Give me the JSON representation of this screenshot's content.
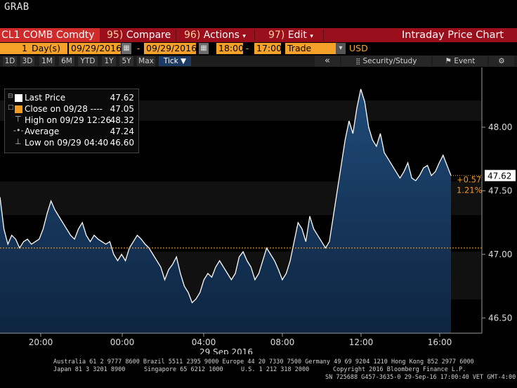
{
  "window": {
    "title": "GRAB"
  },
  "toolbar1": {
    "ticker": "CL1 COMB Comdty",
    "compare_num": "95)",
    "compare_label": "Compare",
    "actions_num": "96)",
    "actions_label": "Actions",
    "edit_num": "97)",
    "edit_label": "Edit",
    "chart_title": "Intraday Price Chart"
  },
  "toolbar2": {
    "period_count": "1",
    "period_unit": "Day(s)",
    "start_date": "09/29/2016",
    "end_date": "09/29/2016",
    "start_time": "18:00",
    "end_time": "17:00",
    "event_type": "Trade",
    "currency": "USD"
  },
  "timeframes": [
    "1D",
    "3D",
    "1M",
    "6M",
    "YTD",
    "1Y",
    "5Y",
    "Max"
  ],
  "tick_label": "Tick ▼",
  "right_controls": {
    "collapse": "«",
    "security_study": "Security/Study",
    "event": "Event"
  },
  "legend": {
    "rows": [
      {
        "label": "Last Price",
        "value": "47.62"
      },
      {
        "label": "Close on 09/28 ----",
        "value": "47.05"
      },
      {
        "label": "High on 09/29 12:26",
        "value": "48.32"
      },
      {
        "label": "Average",
        "value": "47.24"
      },
      {
        "label": "Low on 09/29 04:40",
        "value": "46.60"
      }
    ]
  },
  "price_tag": {
    "last": "47.62",
    "change": "+0.57",
    "change_pct": "1.21%"
  },
  "colors": {
    "accent_red": "#9a0f1b",
    "orange": "#f6a22a",
    "close_line": "#f39a1e",
    "area": "#163456"
  },
  "chart_data": {
    "type": "area",
    "x_ticks": [
      "20:00",
      "00:00",
      "04:00",
      "08:00",
      "12:00",
      "16:00"
    ],
    "x_date_label": "29 Sep 2016",
    "y_ticks": [
      48.0,
      47.5,
      47.0,
      46.5
    ],
    "ylim": [
      46.38,
      48.47
    ],
    "close_reference": 47.05,
    "series": [
      {
        "values": [
          47.45,
          47.2,
          47.08,
          47.15,
          47.12,
          47.05,
          47.1,
          47.12,
          47.08,
          47.1,
          47.12,
          47.2,
          47.32,
          47.42,
          47.35,
          47.3,
          47.25,
          47.2,
          47.15,
          47.12,
          47.2,
          47.25,
          47.15,
          47.1,
          47.15,
          47.12,
          47.1,
          47.08,
          47.1,
          47.0,
          46.95,
          47.0,
          46.95,
          47.05,
          47.1,
          47.15,
          47.12,
          47.08,
          47.05,
          47.0,
          46.95,
          46.9,
          46.8,
          46.88,
          46.92,
          46.98,
          46.85,
          46.75,
          46.7,
          46.62,
          46.65,
          46.7,
          46.8,
          46.85,
          46.82,
          46.9,
          46.95,
          46.9,
          46.85,
          46.8,
          46.85,
          46.98,
          47.02,
          46.95,
          46.9,
          46.8,
          46.85,
          46.95,
          47.05,
          47.0,
          46.95,
          46.88,
          46.8,
          46.85,
          46.95,
          47.1,
          47.25,
          47.2,
          47.1,
          47.3,
          47.2,
          47.15,
          47.1,
          47.05,
          47.1,
          47.3,
          47.5,
          47.7,
          47.9,
          48.05,
          47.95,
          48.15,
          48.3,
          48.2,
          48.0,
          47.9,
          47.85,
          47.95,
          47.8,
          47.75,
          47.7,
          47.65,
          47.6,
          47.65,
          47.72,
          47.6,
          47.58,
          47.62,
          47.68,
          47.7,
          47.62,
          47.65,
          47.72,
          47.78,
          47.7,
          47.62
        ]
      }
    ]
  },
  "footer": {
    "line1": "Australia 61 2 9777 8600 Brazil 5511 2395 9000 Europe 44 20 7330 7500 Germany 49 69 9204 1210 Hong Kong 852 2977 6000",
    "line2_left": "Japan 81 3 3201 8900",
    "line2_mid": "Singapore 65 6212 1000",
    "line2_us": "U.S. 1 212 318 2000",
    "line2_right": "Copyright 2016 Bloomberg Finance L.P.",
    "line3": "SN 725688 G457-3635-0 29-Sep-16 17:00:40 VET  GMT-4:00"
  }
}
